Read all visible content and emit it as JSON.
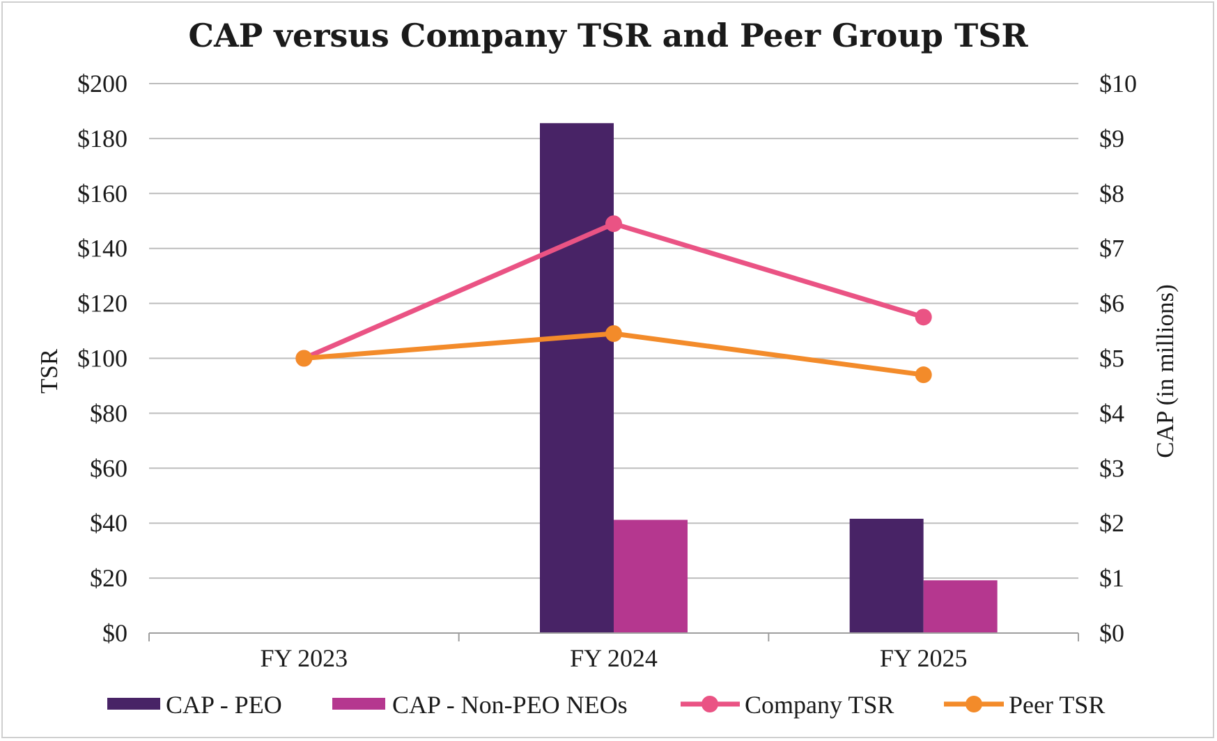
{
  "chart_data": {
    "type": "bar",
    "title": "CAP versus Company TSR and Peer Group TSR",
    "categories": [
      "FY 2023",
      "FY 2024",
      "FY 2025"
    ],
    "left_axis": {
      "label": "TSR",
      "range": [
        0,
        200
      ],
      "ticks": [
        "$0",
        "$20",
        "$40",
        "$60",
        "$80",
        "$100",
        "$120",
        "$140",
        "$160",
        "$180",
        "$200"
      ]
    },
    "right_axis": {
      "label": "CAP (in millions)",
      "range": [
        0,
        10
      ],
      "ticks": [
        "$0",
        "$1",
        "$2",
        "$3",
        "$4",
        "$5",
        "$6",
        "$7",
        "$8",
        "$9",
        "$10"
      ]
    },
    "series": [
      {
        "name": "CAP - PEO",
        "kind": "bar",
        "axis": "right",
        "color": "#482366",
        "values": [
          null,
          9.28,
          2.08
        ]
      },
      {
        "name": "CAP - Non-PEO NEOs",
        "kind": "bar",
        "axis": "right",
        "color": "#b5378f",
        "values": [
          null,
          2.06,
          0.96
        ]
      },
      {
        "name": "Company TSR",
        "kind": "line",
        "axis": "left",
        "color": "#ea5384",
        "values": [
          100,
          149,
          115
        ]
      },
      {
        "name": "Peer TSR",
        "kind": "line",
        "axis": "left",
        "color": "#f38b2a",
        "values": [
          100,
          109,
          94
        ]
      }
    ],
    "grid": true,
    "legend": "bottom"
  }
}
